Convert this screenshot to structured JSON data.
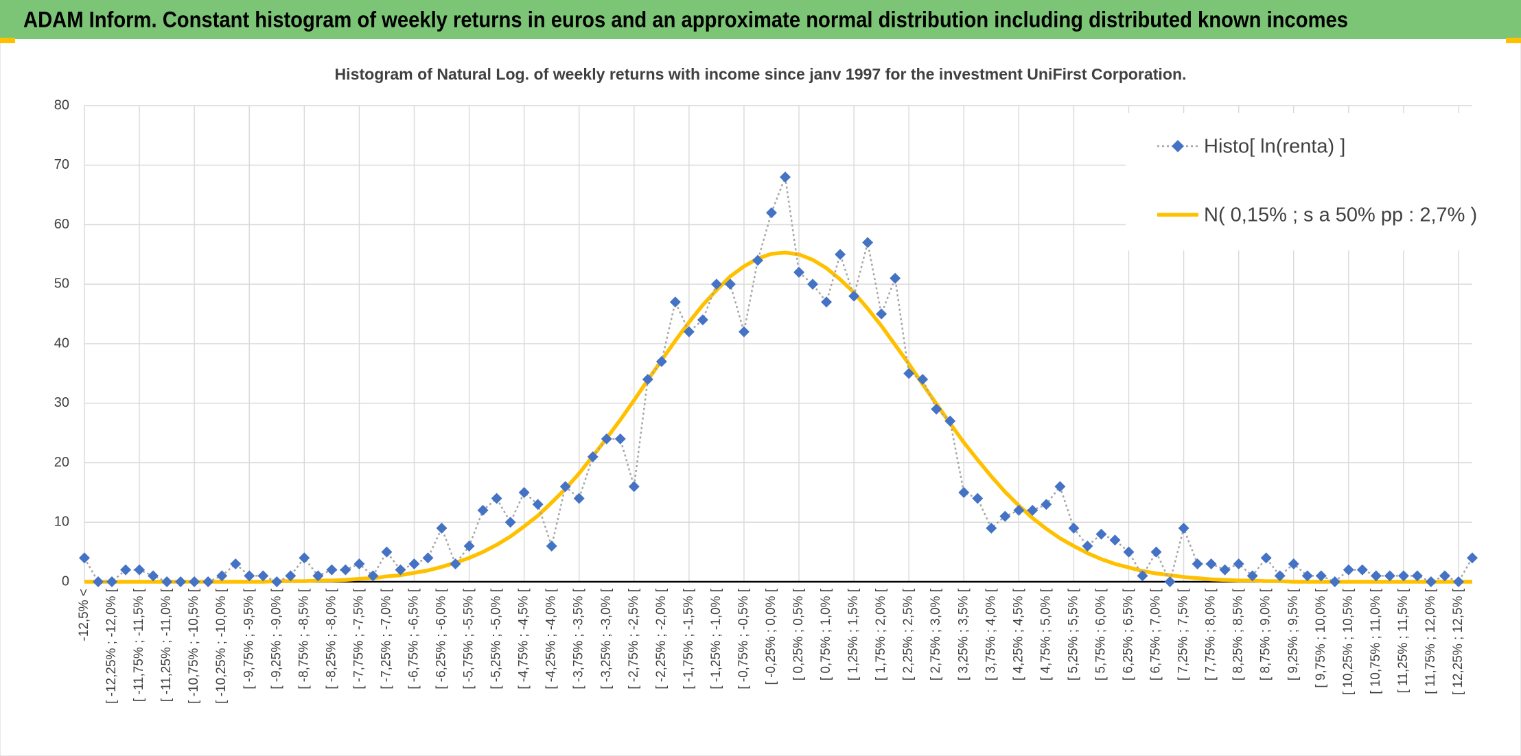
{
  "header": {
    "title": "ADAM Inform. Constant histogram of weekly returns in euros and an approximate normal distribution including distributed known incomes"
  },
  "chart_data": {
    "type": "line",
    "title": "Histogram of Natural Log. of weekly returns with income since janv 1997 for the investment UniFirst Corporation.",
    "categories": [
      "-12,5% <",
      null,
      "[ -12,25% ; -12,0% [",
      null,
      "[ -11,75% ; -11,5% [",
      null,
      "[ -11,25% ; -11,0% [",
      null,
      "[ -10,75% ; -10,5% [",
      null,
      "[ -10,25% ; -10,0% [",
      null,
      "[ -9,75% ; -9,5% [",
      null,
      "[ -9,25% ; -9,0% [",
      null,
      "[ -8,75% ; -8,5% [",
      null,
      "[ -8,25% ; -8,0% [",
      null,
      "[ -7,75% ; -7,5% [",
      null,
      "[ -7,25% ; -7,0% [",
      null,
      "[ -6,75% ; -6,5% [",
      null,
      "[ -6,25% ; -6,0% [",
      null,
      "[ -5,75% ; -5,5% [",
      null,
      "[ -5,25% ; -5,0% [",
      null,
      "[ -4,75% ; -4,5% [",
      null,
      "[ -4,25% ; -4,0% [",
      null,
      "[ -3,75% ; -3,5% [",
      null,
      "[ -3,25% ; -3,0% [",
      null,
      "[ -2,75% ; -2,5% [",
      null,
      "[ -2,25% ; -2,0% [",
      null,
      "[ -1,75% ; -1,5% [",
      null,
      "[ -1,25% ; -1,0% [",
      null,
      "[ -0,75% ; -0,5% [",
      null,
      "[ -0,25% ; 0,0% [",
      null,
      "[ 0,25% ; 0,5% [",
      null,
      "[ 0,75% ; 1,0% [",
      null,
      "[ 1,25% ; 1,5% [",
      null,
      "[ 1,75% ; 2,0% [",
      null,
      "[ 2,25% ; 2,5% [",
      null,
      "[ 2,75% ; 3,0% [",
      null,
      "[ 3,25% ; 3,5% [",
      null,
      "[ 3,75% ; 4,0% [",
      null,
      "[ 4,25% ; 4,5% [",
      null,
      "[ 4,75% ; 5,0% [",
      null,
      "[ 5,25% ; 5,5% [",
      null,
      "[ 5,75% ; 6,0% [",
      null,
      "[ 6,25% ; 6,5% [",
      null,
      "[ 6,75% ; 7,0% [",
      null,
      "[ 7,25% ; 7,5% [",
      null,
      "[ 7,75% ; 8,0% [",
      null,
      "[ 8,25% ; 8,5% [",
      null,
      "[ 8,75% ; 9,0% [",
      null,
      "[ 9,25% ; 9,5% [",
      null,
      "[ 9,75% ; 10,0% [",
      null,
      "[ 10,25% ; 10,5% [",
      null,
      "[ 10,75% ; 11,0% [",
      null,
      "[ 11,25% ; 11,5% [",
      null,
      "[ 11,75% ; 12,0% [",
      null,
      "[ 12,25% ; 12,5% [",
      null
    ],
    "series": [
      {
        "name": "Histo[ ln(renta) ]",
        "color": "#4472c4",
        "line_color": "#a5a5a5",
        "values": [
          4,
          0,
          0,
          2,
          2,
          1,
          0,
          0,
          0,
          0,
          1,
          3,
          1,
          1,
          0,
          1,
          4,
          1,
          2,
          2,
          3,
          1,
          5,
          2,
          3,
          4,
          9,
          3,
          6,
          12,
          14,
          10,
          15,
          13,
          6,
          16,
          14,
          21,
          24,
          24,
          16,
          34,
          37,
          47,
          42,
          44,
          50,
          50,
          42,
          54,
          62,
          68,
          52,
          50,
          47,
          55,
          48,
          57,
          45,
          51,
          35,
          34,
          29,
          27,
          15,
          14,
          9,
          11,
          12,
          12,
          13,
          16,
          9,
          6,
          8,
          7,
          5,
          1,
          5,
          0,
          9,
          3,
          3,
          2,
          3,
          1,
          4,
          1,
          3,
          1,
          1,
          0,
          2,
          2,
          1,
          1,
          1,
          1,
          0,
          1,
          0,
          4
        ]
      },
      {
        "name": "N( 0,15% ; s a 50% pp : 2,7% )",
        "color": "#ffc000",
        "values": [
          0,
          0,
          0,
          0,
          0,
          0,
          0,
          0,
          0,
          0,
          0,
          0,
          0,
          0,
          0.1,
          0.1,
          0.1,
          0.2,
          0.2,
          0.3,
          0.5,
          0.6,
          0.9,
          1.1,
          1.5,
          1.9,
          2.5,
          3.2,
          4.0,
          5.0,
          6.2,
          7.6,
          9.3,
          11.1,
          13.3,
          15.6,
          18.2,
          21.1,
          24.1,
          27.2,
          30.5,
          33.9,
          37.2,
          40.5,
          43.6,
          46.5,
          49.0,
          51.3,
          53.0,
          54.3,
          55.1,
          55.3,
          55.0,
          54.1,
          52.7,
          50.8,
          48.6,
          45.9,
          43.0,
          39.8,
          36.6,
          33.2,
          29.9,
          26.6,
          23.4,
          20.5,
          17.7,
          15.1,
          12.8,
          10.7,
          8.9,
          7.3,
          6.0,
          4.8,
          3.8,
          3.0,
          2.4,
          1.8,
          1.4,
          1.1,
          0.8,
          0.6,
          0.4,
          0.3,
          0.2,
          0.2,
          0.1,
          0.1,
          0,
          0,
          0,
          0,
          0,
          0,
          0,
          0,
          0,
          0,
          0,
          0,
          0,
          0
        ]
      }
    ],
    "ylim": [
      0,
      80
    ],
    "yticks": [
      0,
      10,
      20,
      30,
      40,
      50,
      60,
      70,
      80
    ],
    "grid": true,
    "legend": "top-right"
  }
}
